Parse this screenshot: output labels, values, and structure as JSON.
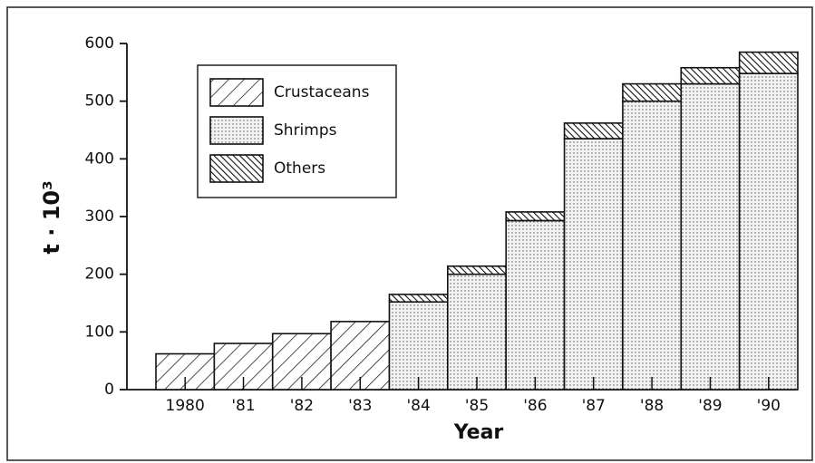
{
  "chart_data": {
    "type": "stacked_bar",
    "categories": [
      "1980",
      "'81",
      "'82",
      "'83",
      "'84",
      "'85",
      "'86",
      "'87",
      "'88",
      "'89",
      "'90"
    ],
    "series": [
      {
        "name": "Crustaceans",
        "values": [
          62,
          80,
          97,
          118,
          null,
          null,
          null,
          null,
          null,
          null,
          null
        ]
      },
      {
        "name": "Shrimps",
        "values": [
          null,
          null,
          null,
          null,
          152,
          200,
          293,
          435,
          500,
          530,
          548
        ]
      },
      {
        "name": "Others",
        "values": [
          null,
          null,
          null,
          null,
          13,
          14,
          15,
          27,
          30,
          28,
          37
        ]
      }
    ],
    "xlabel": "Year",
    "ylabel": "t · 10³",
    "ylim": [
      0,
      600
    ],
    "yticks": [
      0,
      100,
      200,
      300,
      400,
      500,
      600
    ]
  }
}
